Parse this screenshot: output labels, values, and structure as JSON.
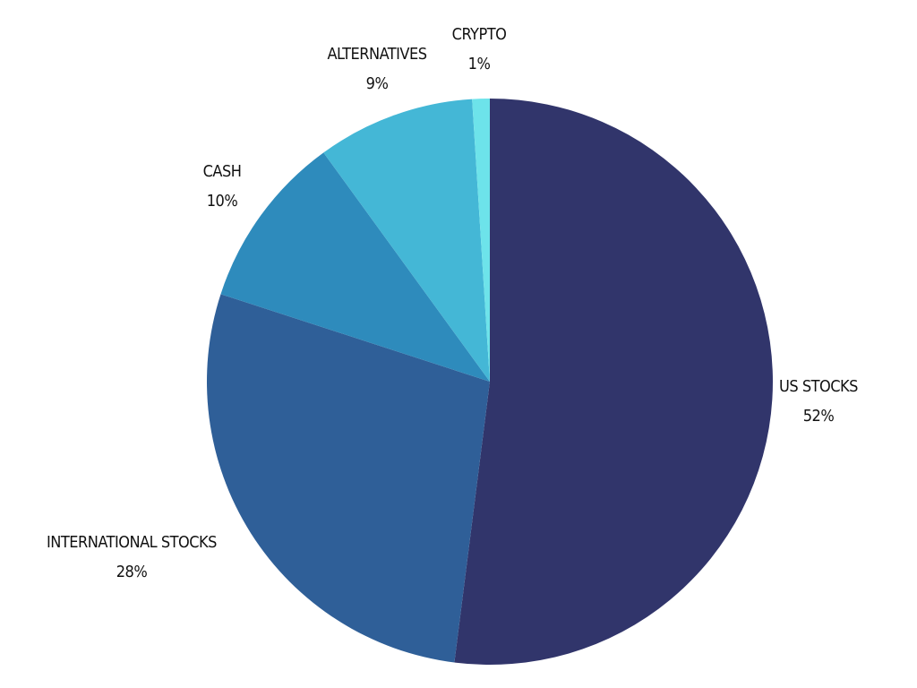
{
  "chart_data": {
    "type": "pie",
    "title": "",
    "legend": "none",
    "start_angle_deg": 0,
    "direction": "clockwise",
    "slices": [
      {
        "label": "US STOCKS",
        "value": 52,
        "value_label": "52%",
        "color": "#31356b"
      },
      {
        "label": "INTERNATIONAL STOCKS",
        "value": 28,
        "value_label": "28%",
        "color": "#2f5f98"
      },
      {
        "label": "CASH",
        "value": 10,
        "value_label": "10%",
        "color": "#2e8bbc"
      },
      {
        "label": "ALTERNATIVES",
        "value": 9,
        "value_label": "9%",
        "color": "#44b7d6"
      },
      {
        "label": "CRYPTO",
        "value": 1,
        "value_label": "1%",
        "color": "#6de3ea"
      }
    ]
  }
}
